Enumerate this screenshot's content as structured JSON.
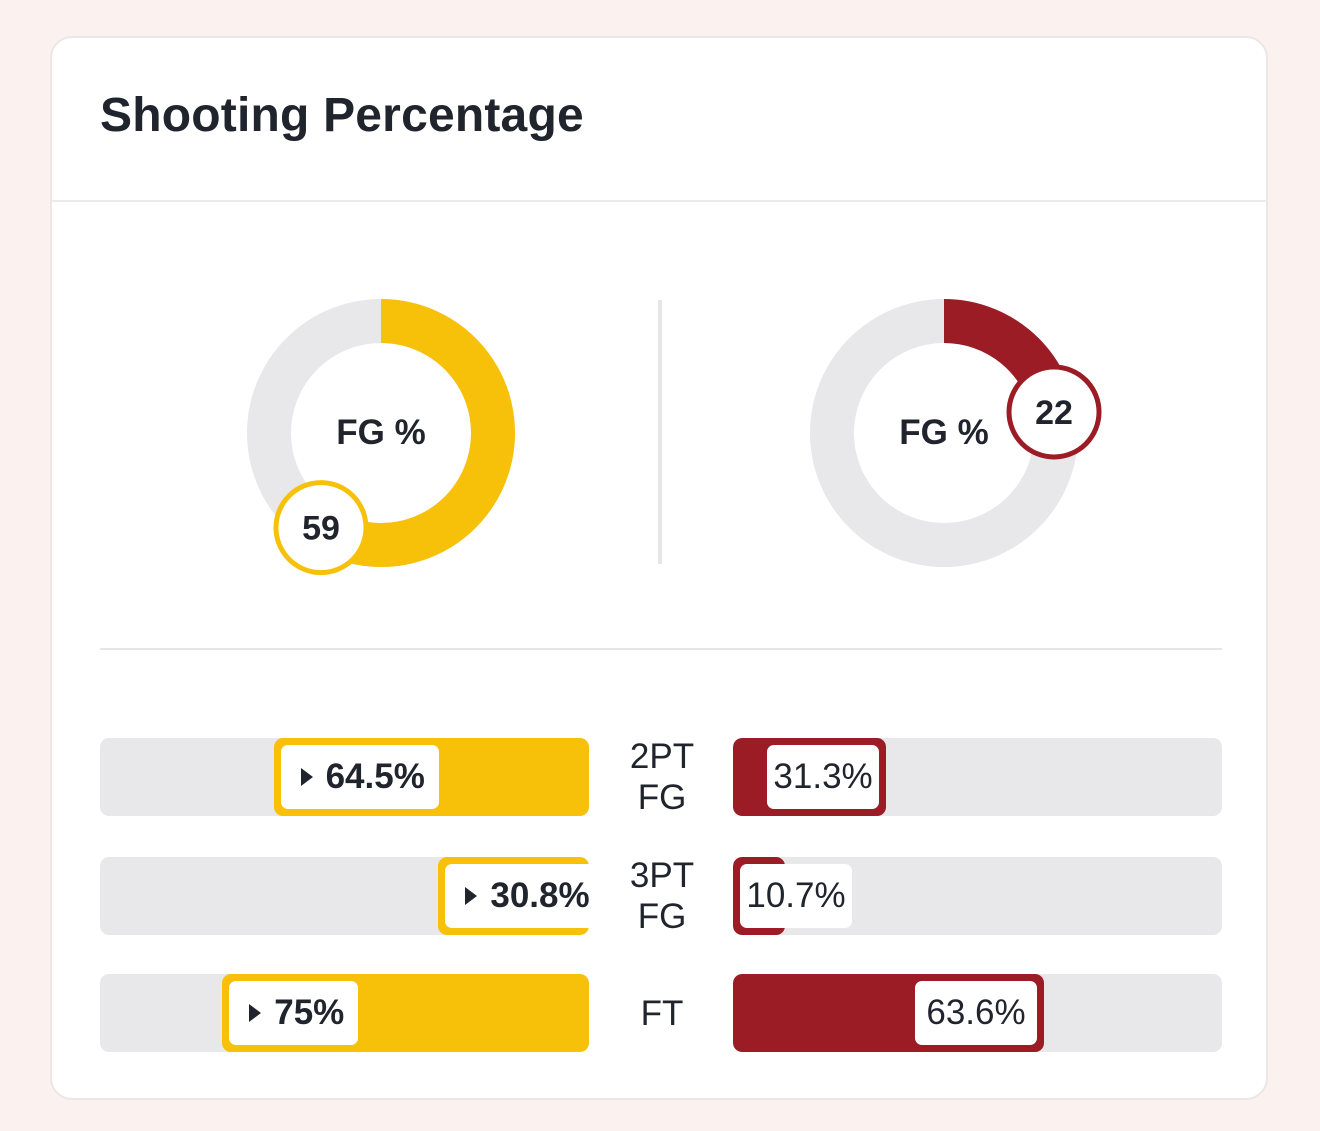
{
  "colors": {
    "team_a": "#f6c108",
    "team_b": "#9b1c24",
    "track": "#e8e8eb"
  },
  "title": "Shooting Percentage",
  "chart_data": [
    {
      "type": "pie",
      "variant": "donut",
      "label": "FG %",
      "value": 59,
      "max": 100,
      "color": "#f6c108"
    },
    {
      "type": "pie",
      "variant": "donut",
      "label": "FG %",
      "value": 22,
      "max": 100,
      "color": "#9b1c24"
    },
    {
      "type": "bar",
      "orientation": "horizontal-mirrored",
      "categories": [
        "2PT FG",
        "3PT FG",
        "FT"
      ],
      "xlim": [
        0,
        100
      ],
      "series": [
        {
          "values": [
            64.5,
            30.8,
            75
          ],
          "labels": [
            "64.5%",
            "30.8%",
            "75%"
          ],
          "color": "#f6c108"
        },
        {
          "values": [
            31.3,
            10.7,
            63.6
          ],
          "labels": [
            "31.3%",
            "10.7%",
            "63.6%"
          ],
          "color": "#9b1c24"
        }
      ]
    }
  ]
}
